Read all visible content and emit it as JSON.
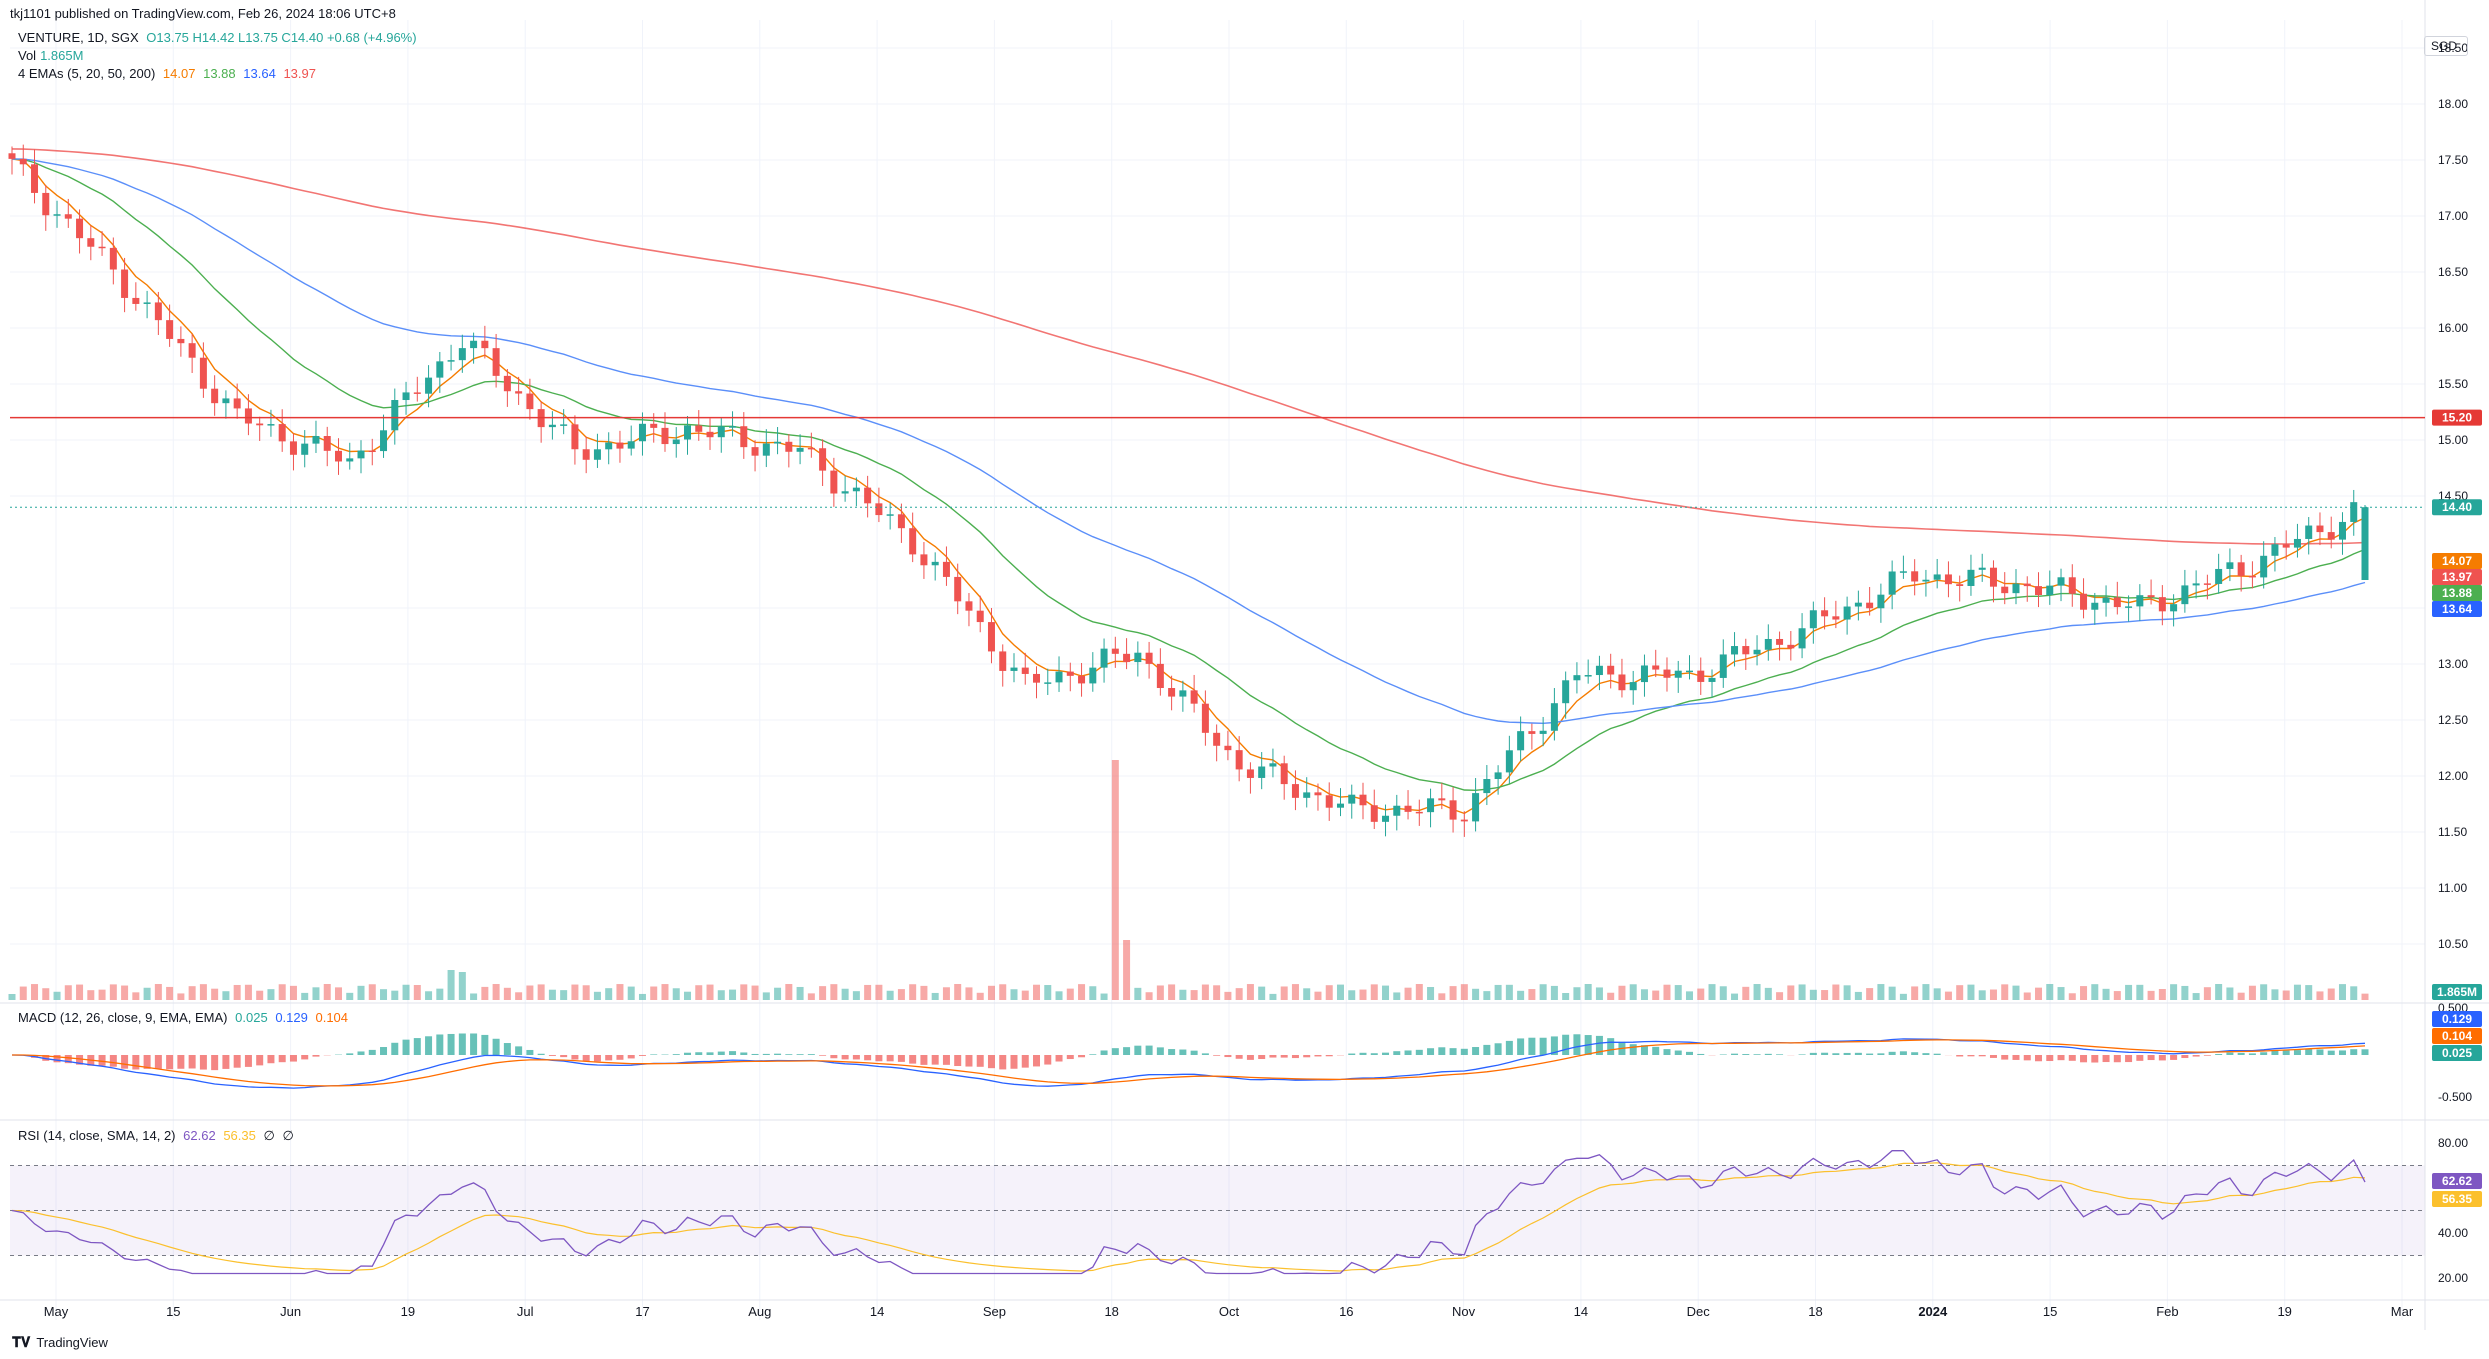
{
  "header": {
    "published": "tkj1101 published on TradingView.com, Feb 26, 2024 18:06 UTC+8",
    "symbol": "VENTURE, 1D, SGX",
    "ohlc": "O13.75  H14.42  L13.75  C14.40  +0.68 (+4.96%)",
    "vol_label": "Vol",
    "vol_value": "1.865M",
    "ema_label": "4 EMAs (5, 20, 50, 200)",
    "ema_values": [
      "14.07",
      "13.88",
      "13.64",
      "13.97"
    ],
    "currency": "SGD"
  },
  "colors": {
    "up": "#26a69a",
    "down": "#ef5350",
    "ema5": "#f57c00",
    "ema20": "#4caf50",
    "ema50": "#5b8ff9",
    "ema200": "#ef5350",
    "resistance": "#e53935",
    "macd_line": "#2962ff",
    "signal_line": "#ff6d00",
    "rsi_line": "#7e57c2",
    "rsi_ma": "#fbc02d"
  },
  "chart_data": {
    "type": "candlestick",
    "price_axis": {
      "min": 10.25,
      "max": 18.5,
      "ticks": [
        "18.50",
        "18.00",
        "17.50",
        "17.00",
        "16.50",
        "16.00",
        "15.50",
        "15.00",
        "14.50",
        "13.50",
        "13.00",
        "12.50",
        "12.00",
        "11.50",
        "11.00",
        "10.50"
      ]
    },
    "x_ticks": [
      "May",
      "15",
      "Jun",
      "19",
      "Jul",
      "17",
      "Aug",
      "14",
      "Sep",
      "18",
      "Oct",
      "16",
      "Nov",
      "14",
      "Dec",
      "18",
      "2024",
      "15",
      "Feb",
      "19",
      "Mar"
    ],
    "key_points": [
      {
        "date": "May 1",
        "close": 17.45
      },
      {
        "date": "May 10",
        "close": 16.4
      },
      {
        "date": "May 15",
        "close": 15.2
      },
      {
        "date": "Jun 1",
        "close": 14.8
      },
      {
        "date": "Jun 19",
        "close": 15.9
      },
      {
        "date": "Jul 1",
        "close": 14.9
      },
      {
        "date": "Jul 17",
        "close": 15.1
      },
      {
        "date": "Aug 1",
        "close": 14.9
      },
      {
        "date": "Aug 14",
        "close": 14.1
      },
      {
        "date": "Sep 1",
        "close": 12.8
      },
      {
        "date": "Sep 18",
        "close": 13.1
      },
      {
        "date": "Oct 1",
        "close": 12.1
      },
      {
        "date": "Oct 16",
        "close": 11.7
      },
      {
        "date": "Nov 1",
        "close": 11.7
      },
      {
        "date": "Nov 14",
        "close": 12.9
      },
      {
        "date": "Dec 1",
        "close": 12.9
      },
      {
        "date": "Dec 18",
        "close": 13.3
      },
      {
        "date": "Jan 2",
        "close": 13.8
      },
      {
        "date": "Jan 15",
        "close": 13.7
      },
      {
        "date": "Feb 1",
        "close": 13.5
      },
      {
        "date": "Feb 19",
        "close": 13.9
      },
      {
        "date": "Feb 26",
        "close": 14.4
      }
    ],
    "last_bar": {
      "open": 13.75,
      "high": 14.42,
      "low": 13.75,
      "close": 14.4
    },
    "horizontal_line": 15.2,
    "price_labels": [
      {
        "text": "15.20",
        "color": "#e53935"
      },
      {
        "text": "14.40",
        "color": "#26a69a"
      },
      {
        "text": "14.07",
        "color": "#f57c00"
      },
      {
        "text": "13.97",
        "color": "#ef5350"
      },
      {
        "text": "13.88",
        "color": "#4caf50"
      },
      {
        "text": "13.64",
        "color": "#2962ff"
      }
    ],
    "volume_label": "1.865M",
    "macd": {
      "label": "MACD (12, 26, close, 9, EMA, EMA)",
      "values": [
        "0.025",
        "0.129",
        "0.104"
      ],
      "axis_ticks": [
        "0.500",
        "-0.500"
      ],
      "price_labels": [
        {
          "text": "0.129",
          "color": "#2962ff"
        },
        {
          "text": "0.104",
          "color": "#ff6d00"
        },
        {
          "text": "0.025",
          "color": "#26a69a"
        }
      ]
    },
    "rsi": {
      "label": "RSI (14, close, SMA, 14, 2)",
      "values": [
        "62.62",
        "56.35",
        "∅",
        "∅"
      ],
      "axis_ticks": [
        "80.00",
        "40.00",
        "20.00"
      ],
      "price_labels": [
        {
          "text": "62.62",
          "color": "#7e57c2"
        },
        {
          "text": "56.35",
          "color": "#fbc02d"
        }
      ]
    }
  },
  "footer": {
    "brand": "TradingView"
  }
}
